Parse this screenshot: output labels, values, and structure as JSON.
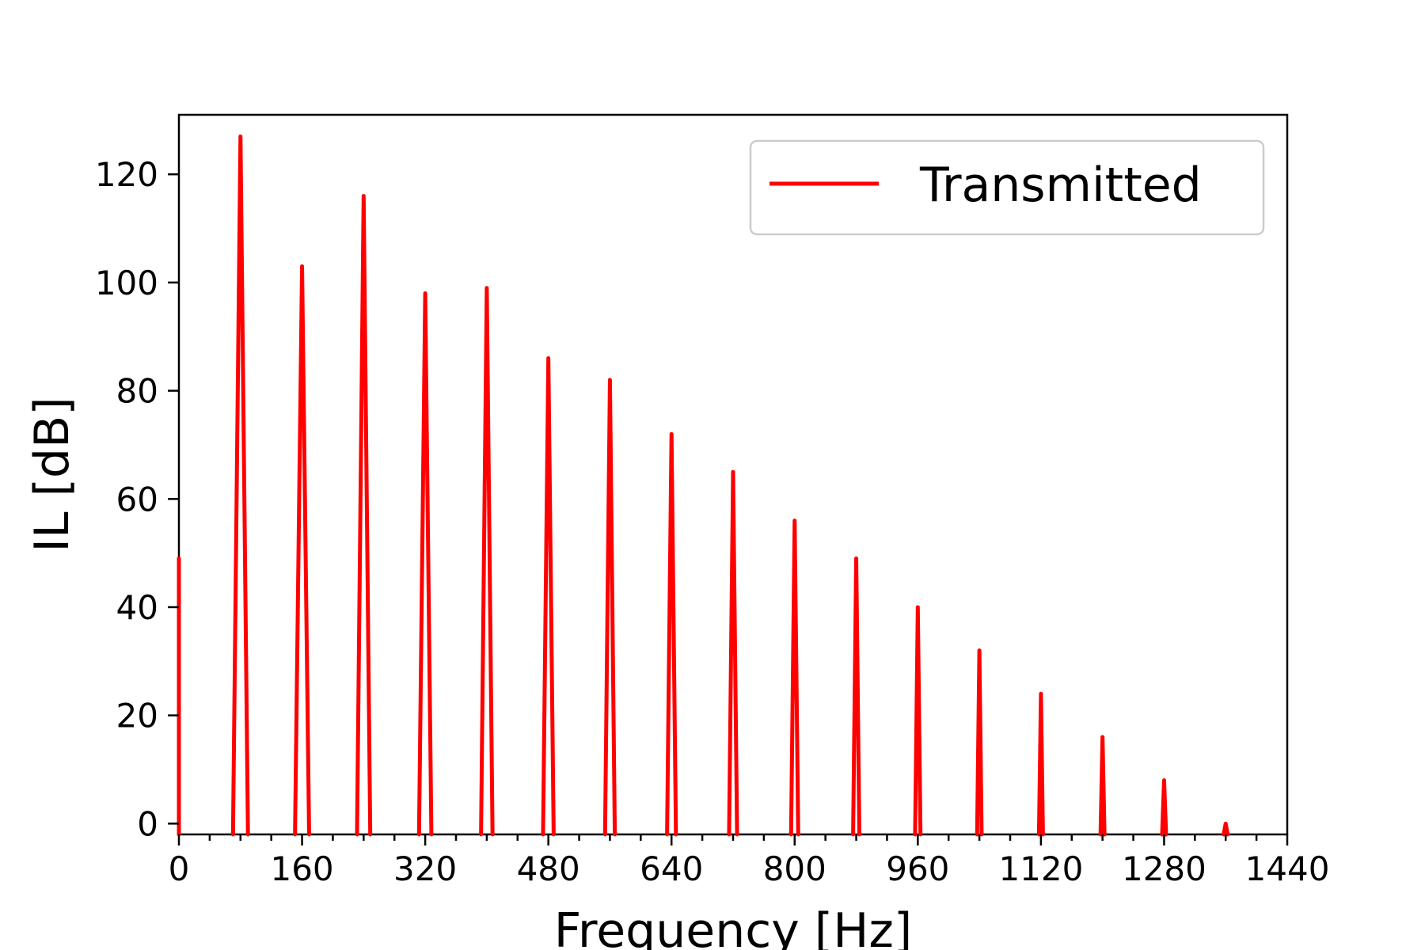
{
  "chart_data": {
    "type": "line",
    "xlabel": "Frequency [Hz]",
    "ylabel": "IL [dB]",
    "xlim": [
      0,
      1440
    ],
    "ylim": [
      -2,
      131
    ],
    "xticks": [
      0,
      160,
      320,
      480,
      640,
      800,
      960,
      1120,
      1280,
      1440
    ],
    "xtick_labels": [
      "0",
      "160",
      "320",
      "480",
      "640",
      "800",
      "960",
      "1120",
      "1280",
      "1440"
    ],
    "yticks": [
      0,
      20,
      40,
      60,
      80,
      100,
      120
    ],
    "ytick_labels": [
      "0",
      "20",
      "40",
      "60",
      "80",
      "100",
      "120"
    ],
    "grid": false,
    "legend_position": "upper-right",
    "series": [
      {
        "name": "Transmitted",
        "color": "#ff0000",
        "peaks": [
          {
            "x": 0,
            "y": 49
          },
          {
            "x": 80,
            "y": 127
          },
          {
            "x": 160,
            "y": 103
          },
          {
            "x": 240,
            "y": 116
          },
          {
            "x": 320,
            "y": 98
          },
          {
            "x": 400,
            "y": 99
          },
          {
            "x": 480,
            "y": 86
          },
          {
            "x": 560,
            "y": 82
          },
          {
            "x": 640,
            "y": 72
          },
          {
            "x": 720,
            "y": 65
          },
          {
            "x": 800,
            "y": 56
          },
          {
            "x": 880,
            "y": 49
          },
          {
            "x": 960,
            "y": 40
          },
          {
            "x": 1040,
            "y": 32
          },
          {
            "x": 1120,
            "y": 24
          },
          {
            "x": 1200,
            "y": 16
          },
          {
            "x": 1280,
            "y": 8
          },
          {
            "x": 1360,
            "y": 0
          }
        ],
        "baseline": -2
      }
    ]
  }
}
